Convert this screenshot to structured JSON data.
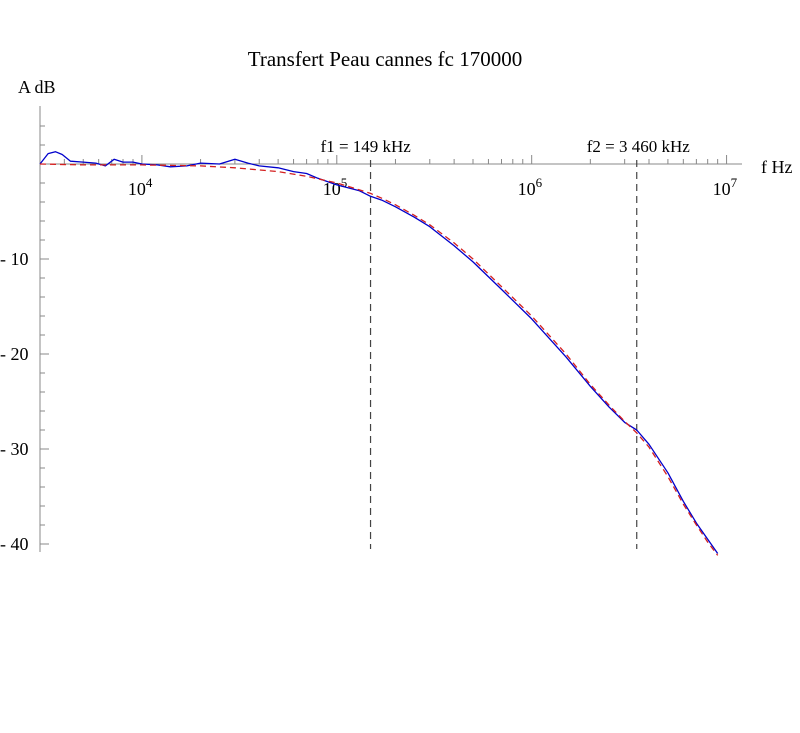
{
  "chart_data": {
    "type": "line",
    "title": "Transfert Peau cannes fc 170000",
    "xlabel": "f Hz",
    "ylabel": "A dB",
    "x_scale": "log",
    "xlim": [
      3000,
      12000000
    ],
    "ylim": [
      -41,
      6
    ],
    "x_ticks": [
      {
        "value": 10000,
        "base": "10",
        "exp": "4"
      },
      {
        "value": 100000,
        "base": "10",
        "exp": "5"
      },
      {
        "value": 1000000,
        "base": "10",
        "exp": "6"
      },
      {
        "value": 10000000,
        "base": "10",
        "exp": "7"
      }
    ],
    "y_ticks": [
      {
        "value": -10,
        "label": "- 10"
      },
      {
        "value": -20,
        "label": "- 20"
      },
      {
        "value": -30,
        "label": "- 30"
      },
      {
        "value": -40,
        "label": "- 40"
      }
    ],
    "grid": false,
    "colors": {
      "measured": "#0000cc",
      "model": "#d42020",
      "reference": "#444444",
      "axis": "#888888",
      "text": "#000000"
    },
    "series": [
      {
        "style": "solid",
        "x": [
          3000,
          3300,
          3600,
          3900,
          4300,
          5000,
          5800,
          6500,
          7200,
          8000,
          9000,
          10000,
          12000,
          14000,
          17000,
          20000,
          25000,
          30000,
          35000,
          40000,
          50000,
          60000,
          70000,
          80000,
          100000,
          130000,
          149000,
          170000,
          200000,
          250000,
          300000,
          400000,
          500000,
          700000,
          1000000,
          1500000,
          2000000,
          2500000,
          3000000,
          3460000,
          4000000,
          5000000,
          6000000,
          7000000,
          8000000,
          9000000
        ],
        "y": [
          0,
          1.1,
          1.3,
          1.0,
          0.3,
          0.2,
          0.1,
          -0.2,
          0.5,
          0.2,
          0.2,
          0.0,
          -0.1,
          -0.3,
          -0.2,
          0.1,
          0.0,
          0.5,
          0.1,
          -0.2,
          -0.4,
          -0.8,
          -1.0,
          -1.5,
          -2.2,
          -2.8,
          -3.4,
          -3.8,
          -4.5,
          -5.6,
          -6.6,
          -8.6,
          -10.3,
          -13.2,
          -16.3,
          -20.3,
          -23.4,
          -25.6,
          -27.2,
          -28.0,
          -29.5,
          -32.5,
          -35.5,
          -37.8,
          -39.5,
          -41.0
        ]
      },
      {
        "style": "dashed",
        "x": [
          3000,
          5000,
          10000,
          20000,
          30000,
          50000,
          70000,
          100000,
          130000,
          149000,
          170000,
          200000,
          250000,
          300000,
          400000,
          500000,
          700000,
          1000000,
          1500000,
          2000000,
          2500000,
          3000000,
          3460000,
          4000000,
          5000000,
          6000000,
          7000000,
          8000000,
          9000000
        ],
        "y": [
          0,
          -0.1,
          -0.1,
          -0.2,
          -0.4,
          -0.8,
          -1.3,
          -2.0,
          -2.7,
          -3.1,
          -3.6,
          -4.3,
          -5.4,
          -6.4,
          -8.3,
          -10.0,
          -12.9,
          -16.0,
          -20.0,
          -23.2,
          -25.4,
          -27.1,
          -28.3,
          -29.8,
          -32.9,
          -35.8,
          -38.0,
          -39.8,
          -41.2
        ]
      }
    ],
    "reference_lines": [
      {
        "x": 149000,
        "label": "f1 = 149 kHz"
      },
      {
        "x": 3460000,
        "label": "f2 = 3 460 kHz"
      }
    ]
  }
}
